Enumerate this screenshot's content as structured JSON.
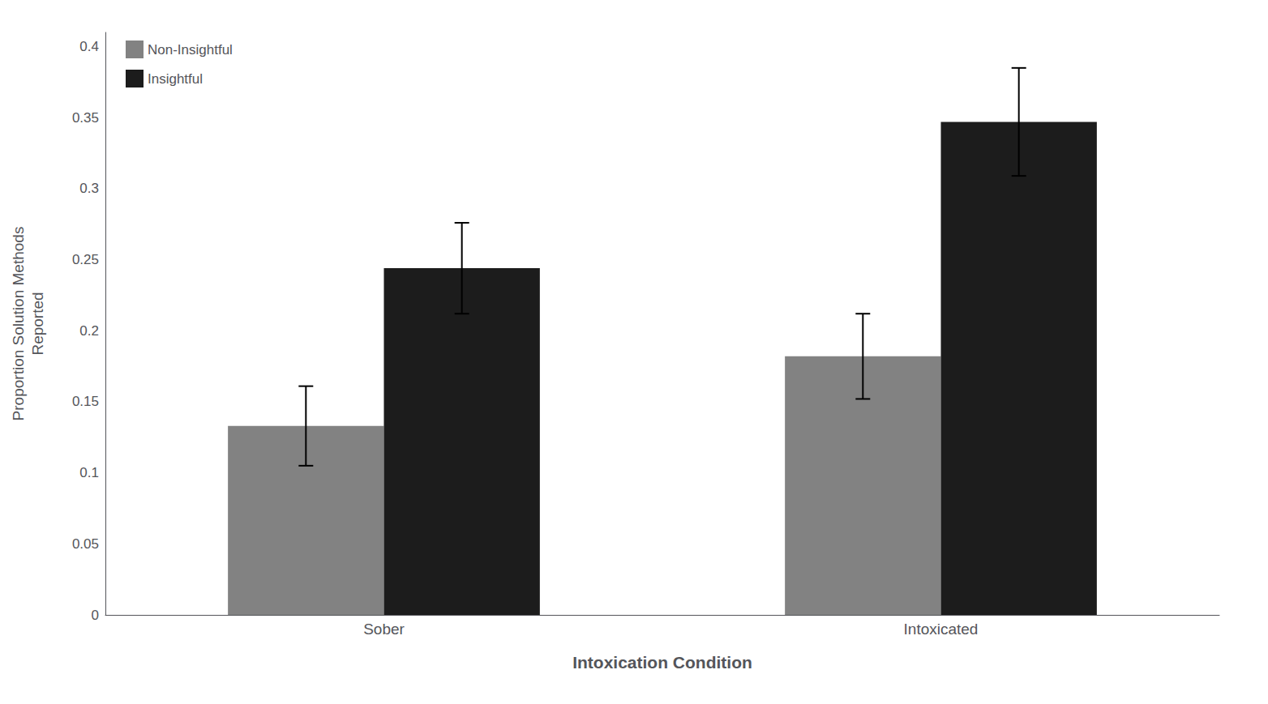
{
  "chart_data": {
    "type": "bar",
    "categories": [
      "Sober",
      "Intoxicated"
    ],
    "series": [
      {
        "name": "Non-Insightful",
        "color": "#828282",
        "values": [
          0.133,
          0.182
        ],
        "errors": [
          0.028,
          0.03
        ]
      },
      {
        "name": "Insightful",
        "color": "#1c1c1c",
        "values": [
          0.244,
          0.347
        ],
        "errors": [
          0.032,
          0.038
        ]
      }
    ],
    "xlabel": "Intoxication Condition",
    "ylabel": "Proportion Solution Methods\nReported",
    "ylim": [
      0,
      0.41
    ],
    "yticks": [
      0,
      0.05,
      0.1,
      0.15,
      0.2,
      0.25,
      0.3,
      0.35,
      0.4
    ],
    "grid": false,
    "legend": "upper left"
  }
}
